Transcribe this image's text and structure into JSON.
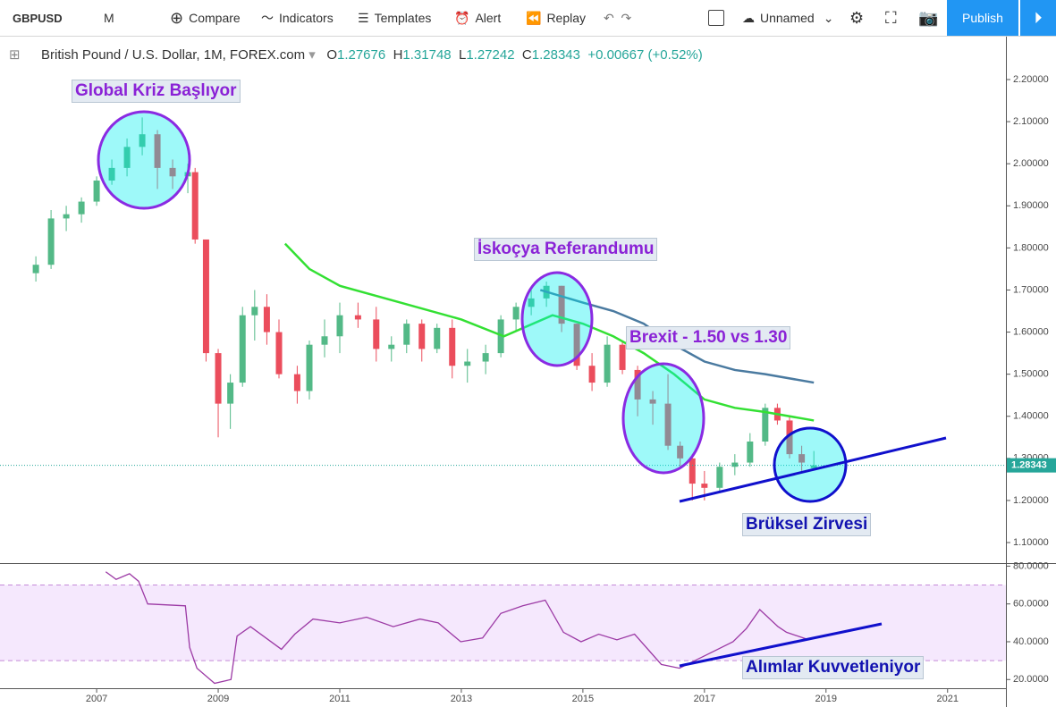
{
  "toolbar": {
    "symbol": "GBPUSD",
    "interval": "M",
    "compare": "Compare",
    "indicators": "Indicators",
    "templates": "Templates",
    "alert": "Alert",
    "replay": "Replay",
    "layout_name": "Unnamed",
    "publish": "Publish"
  },
  "legend": {
    "title": "British Pound / U.S. Dollar, 1M, FOREX.com",
    "open_prefix": "O",
    "high_prefix": "H",
    "low_prefix": "L",
    "close_prefix": "C",
    "change": "+0.00667 (+0.52%)"
  },
  "annotations": {
    "global": "Global Kriz Başlıyor",
    "scotland": "İskoçya Referandumu",
    "brexit": "Brexit - 1.50 vs 1.30",
    "brussels": "Brüksel Zirvesi",
    "buying": "Alımlar Kuvvetleniyor"
  },
  "chart_data": [
    {
      "type": "candlestick",
      "up_color": "#53b987",
      "down_color": "#eb4d5c",
      "x": [
        2006.0,
        2006.25,
        2006.5,
        2006.75,
        2007.0,
        2007.25,
        2007.5,
        2007.75,
        2008.0,
        2008.25,
        2008.5,
        2008.62,
        2008.8,
        2009.0,
        2009.2,
        2009.4,
        2009.6,
        2009.8,
        2010.0,
        2010.3,
        2010.5,
        2010.75,
        2011.0,
        2011.3,
        2011.6,
        2011.85,
        2012.1,
        2012.35,
        2012.6,
        2012.85,
        2013.1,
        2013.4,
        2013.65,
        2013.9,
        2014.15,
        2014.4,
        2014.65,
        2014.9,
        2015.15,
        2015.4,
        2015.65,
        2015.9,
        2016.15,
        2016.4,
        2016.6,
        2016.8,
        2017.0,
        2017.25,
        2017.5,
        2017.75,
        2018.0,
        2018.2,
        2018.4,
        2018.6,
        2018.8
      ],
      "open": [
        1.74,
        1.76,
        1.87,
        1.88,
        1.91,
        1.96,
        1.99,
        2.04,
        2.07,
        1.99,
        1.97,
        1.98,
        1.82,
        1.55,
        1.43,
        1.48,
        1.64,
        1.66,
        1.6,
        1.5,
        1.46,
        1.57,
        1.59,
        1.64,
        1.63,
        1.56,
        1.57,
        1.62,
        1.56,
        1.61,
        1.52,
        1.53,
        1.55,
        1.63,
        1.66,
        1.68,
        1.71,
        1.62,
        1.52,
        1.48,
        1.57,
        1.51,
        1.44,
        1.43,
        1.33,
        1.3,
        1.24,
        1.23,
        1.28,
        1.29,
        1.34,
        1.42,
        1.39,
        1.31,
        1.27676
      ],
      "high": [
        1.78,
        1.89,
        1.9,
        1.92,
        1.97,
        2.01,
        2.06,
        2.11,
        2.08,
        2.01,
        2.0,
        1.99,
        1.82,
        1.56,
        1.5,
        1.66,
        1.7,
        1.69,
        1.63,
        1.52,
        1.58,
        1.63,
        1.67,
        1.67,
        1.66,
        1.59,
        1.63,
        1.63,
        1.62,
        1.63,
        1.56,
        1.57,
        1.64,
        1.67,
        1.7,
        1.72,
        1.71,
        1.62,
        1.55,
        1.59,
        1.58,
        1.52,
        1.46,
        1.5,
        1.34,
        1.31,
        1.27,
        1.29,
        1.31,
        1.36,
        1.43,
        1.43,
        1.4,
        1.33,
        1.31748
      ],
      "low": [
        1.72,
        1.75,
        1.84,
        1.86,
        1.9,
        1.95,
        1.97,
        2.02,
        1.94,
        1.94,
        1.93,
        1.81,
        1.53,
        1.35,
        1.37,
        1.47,
        1.58,
        1.57,
        1.49,
        1.43,
        1.44,
        1.54,
        1.55,
        1.61,
        1.53,
        1.53,
        1.55,
        1.53,
        1.55,
        1.49,
        1.48,
        1.5,
        1.54,
        1.6,
        1.64,
        1.66,
        1.6,
        1.51,
        1.46,
        1.47,
        1.5,
        1.4,
        1.38,
        1.32,
        1.28,
        1.2,
        1.2,
        1.22,
        1.26,
        1.28,
        1.33,
        1.38,
        1.3,
        1.27,
        1.27242
      ],
      "close": [
        1.76,
        1.87,
        1.88,
        1.91,
        1.96,
        1.99,
        2.04,
        2.07,
        1.99,
        1.97,
        1.98,
        1.82,
        1.55,
        1.43,
        1.48,
        1.64,
        1.66,
        1.6,
        1.5,
        1.46,
        1.57,
        1.59,
        1.64,
        1.63,
        1.56,
        1.57,
        1.62,
        1.56,
        1.61,
        1.52,
        1.53,
        1.55,
        1.63,
        1.66,
        1.68,
        1.71,
        1.62,
        1.52,
        1.48,
        1.57,
        1.51,
        1.44,
        1.43,
        1.33,
        1.3,
        1.24,
        1.23,
        1.28,
        1.29,
        1.34,
        1.42,
        1.39,
        1.31,
        1.29,
        1.28343
      ],
      "series": [
        {
          "color": "#33e033",
          "x": [
            2010.1,
            2010.5,
            2011.0,
            2012.0,
            2013.0,
            2013.7,
            2014.5,
            2015.0,
            2015.5,
            2016.0,
            2016.5,
            2017.0,
            2017.5,
            2018.0,
            2018.8
          ],
          "values": [
            1.81,
            1.75,
            1.71,
            1.67,
            1.63,
            1.59,
            1.64,
            1.62,
            1.59,
            1.55,
            1.5,
            1.44,
            1.42,
            1.41,
            1.39
          ]
        },
        {
          "color": "#4a7aa0",
          "x": [
            2014.3,
            2015.0,
            2015.5,
            2016.0,
            2016.5,
            2017.0,
            2017.5,
            2018.0,
            2018.8
          ],
          "values": [
            1.7,
            1.67,
            1.65,
            1.62,
            1.57,
            1.53,
            1.51,
            1.5,
            1.48
          ]
        }
      ],
      "xlim": [
        2005.41,
        2021.96
      ],
      "ylim": [
        1.0512,
        2.2998
      ],
      "yticks": [
        {
          "value": 1.1,
          "label": "1.10000"
        },
        {
          "value": 1.2,
          "label": "1.20000"
        },
        {
          "value": 1.3,
          "label": "1.30000"
        },
        {
          "value": 1.4,
          "label": "1.40000"
        },
        {
          "value": 1.5,
          "label": "1.50000"
        },
        {
          "value": 1.6,
          "label": "1.60000"
        },
        {
          "value": 1.7,
          "label": "1.70000"
        },
        {
          "value": 1.8,
          "label": "1.80000"
        },
        {
          "value": 1.9,
          "label": "1.90000"
        },
        {
          "value": 2.0,
          "label": "2.00000"
        },
        {
          "value": 2.1,
          "label": "2.10000"
        },
        {
          "value": 2.2,
          "label": "2.20000"
        }
      ]
    },
    {
      "type": "line",
      "color": "#9c3aa5",
      "band": [
        30,
        70
      ],
      "x": [
        2007.15,
        2007.32,
        2007.54,
        2007.69,
        2007.84,
        2008.46,
        2008.53,
        2008.65,
        2008.94,
        2009.21,
        2009.31,
        2009.53,
        2010.04,
        2010.26,
        2010.56,
        2011.0,
        2011.44,
        2011.88,
        2012.32,
        2012.62,
        2012.99,
        2013.35,
        2013.65,
        2014.01,
        2014.38,
        2014.68,
        2014.97,
        2015.26,
        2015.56,
        2015.85,
        2016.29,
        2016.59,
        2017.03,
        2017.47,
        2017.69,
        2017.91,
        2018.21,
        2018.35,
        2018.72
      ],
      "values": [
        77,
        73,
        76,
        72,
        60,
        59,
        37,
        26,
        18,
        20,
        43,
        48,
        36,
        44,
        52,
        50,
        53,
        48,
        52,
        50,
        40,
        42,
        55,
        59,
        62,
        45,
        40,
        44,
        41,
        44,
        28,
        26,
        33,
        40,
        47,
        57,
        48,
        45,
        41
      ],
      "xlim": [
        2005.41,
        2021.96
      ],
      "ylim": [
        15.4,
        80.66
      ],
      "yticks": [
        {
          "value": 20,
          "label": "20.0000"
        },
        {
          "value": 40,
          "label": "40.0000"
        },
        {
          "value": 60,
          "label": "60.0000"
        },
        {
          "value": 80,
          "label": "80.0000"
        }
      ],
      "xticks": [
        2007,
        2009,
        2011,
        2013,
        2015,
        2017,
        2019,
        2021
      ]
    }
  ]
}
